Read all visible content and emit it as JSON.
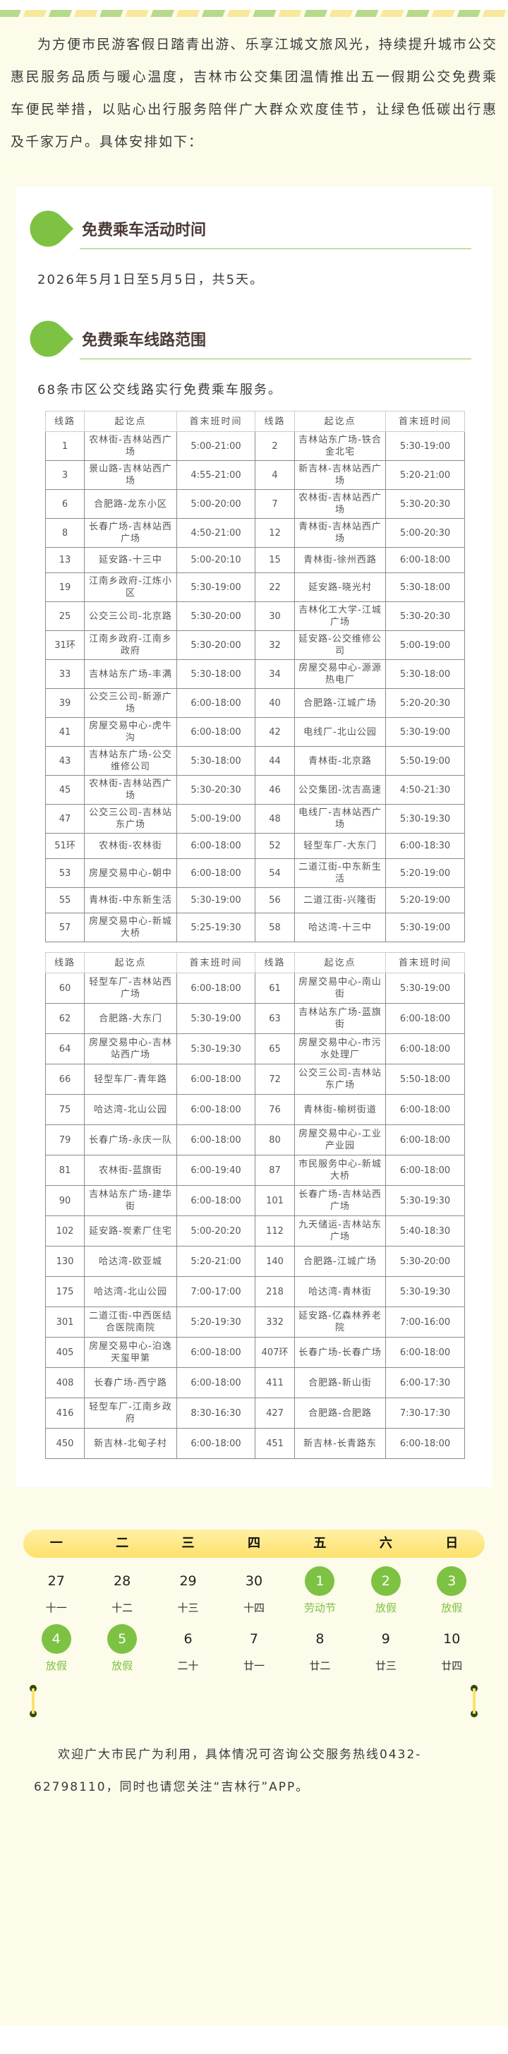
{
  "intro": "为方便市民游客假日踏青出游、乐享江城文旅风光，持续提升城市公交惠民服务品质与暖心温度，吉林市公交集团温情推出五一假期公交免费乘车便民举措，以贴心出行服务陪伴广大群众欢度佳节，让绿色低碳出行惠及千家万户。具体安排如下：",
  "section1": {
    "title": "免费乘车活动时间",
    "text": "2026年5月1日至5月5日，共5天。"
  },
  "section2": {
    "title": "免费乘车线路范围",
    "text": "68条市区公交线路实行免费乘车服务。"
  },
  "table_header": [
    "线路",
    "起讫点",
    "首末班时间",
    "线路",
    "起讫点",
    "首末班时间"
  ],
  "table1": [
    [
      "1",
      "农林街-吉林站西广场",
      "5:00-21:00",
      "2",
      "吉林站东广场-铁合金北宅",
      "5:30-19:00"
    ],
    [
      "3",
      "景山路-吉林站西广场",
      "4:55-21:00",
      "4",
      "新吉林-吉林站西广场",
      "5:20-21:00"
    ],
    [
      "6",
      "合肥路-龙东小区",
      "5:00-20:00",
      "7",
      "农林街-吉林站西广场",
      "5:30-20:30"
    ],
    [
      "8",
      "长春广场-吉林站西广场",
      "4:50-21:00",
      "12",
      "青林街-吉林站西广场",
      "5:00-20:30"
    ],
    [
      "13",
      "延安路-十三中",
      "5:00-20:10",
      "15",
      "青林街-徐州西路",
      "6:00-18:00"
    ],
    [
      "19",
      "江南乡政府-江炼小区",
      "5:30-19:00",
      "22",
      "延安路-晓光村",
      "5:30-18:00"
    ],
    [
      "25",
      "公交三公司-北京路",
      "5:30-20:00",
      "30",
      "吉林化工大学-江城广场",
      "5:30-20:30"
    ],
    [
      "31环",
      "江南乡政府-江南乡政府",
      "5:30-20:00",
      "32",
      "延安路-公交维修公司",
      "5:00-19:00"
    ],
    [
      "33",
      "吉林站东广场-丰满",
      "5:30-18:00",
      "34",
      "房屋交易中心-源源热电厂",
      "5:30-18:00"
    ],
    [
      "39",
      "公交三公司-新源广场",
      "6:00-18:00",
      "40",
      "合肥路-江城广场",
      "5:20-20:30"
    ],
    [
      "41",
      "房屋交易中心-虎牛沟",
      "6:00-18:00",
      "42",
      "电线厂-北山公园",
      "5:30-19:00"
    ],
    [
      "43",
      "吉林站东广场-公交维修公司",
      "5:30-18:00",
      "44",
      "青林街-北京路",
      "5:50-19:00"
    ],
    [
      "45",
      "农林街-吉林站西广场",
      "5:30-20:30",
      "46",
      "公交集团-沈吉高速",
      "4:50-21:30"
    ],
    [
      "47",
      "公交三公司-吉林站东广场",
      "5:00-19:00",
      "48",
      "电线厂-吉林站西广场",
      "5:30-19:30"
    ],
    [
      "51环",
      "农林街-农林街",
      "6:00-18:00",
      "52",
      "轻型车厂-大东门",
      "6:00-18:30"
    ],
    [
      "53",
      "房屋交易中心-朝中",
      "6:00-18:00",
      "54",
      "二道江街-中东新生活",
      "5:20-19:00"
    ],
    [
      "55",
      "青林街-中东新生活",
      "5:30-19:00",
      "56",
      "二道江街-兴隆街",
      "5:20-19:00"
    ],
    [
      "57",
      "房屋交易中心-新城大桥",
      "5:25-19:30",
      "58",
      "哈达湾-十三中",
      "5:30-19:00"
    ]
  ],
  "table2": [
    [
      "60",
      "轻型车厂-吉林站西广场",
      "6:00-18:00",
      "61",
      "房屋交易中心-南山街",
      "5:30-19:00"
    ],
    [
      "62",
      "合肥路-大东门",
      "5:30-19:00",
      "63",
      "吉林站东广场-蓝旗街",
      "6:00-18:00"
    ],
    [
      "64",
      "房屋交易中心-吉林站西广场",
      "5:30-19:30",
      "65",
      "房屋交易中心-市污水处理厂",
      "6:00-18:00"
    ],
    [
      "66",
      "轻型车厂-青年路",
      "6:00-18:00",
      "72",
      "公交三公司-吉林站东广场",
      "5:50-18:00"
    ],
    [
      "75",
      "哈达湾-北山公园",
      "6:00-18:00",
      "76",
      "青林街-榆树街道",
      "6:00-18:00"
    ],
    [
      "79",
      "长春广场-永庆一队",
      "6:00-18:00",
      "80",
      "房屋交易中心-工业产业园",
      "6:00-18:00"
    ],
    [
      "81",
      "农林街-蓝旗街",
      "6:00-19:40",
      "87",
      "市民服务中心-新城大桥",
      "6:00-18:00"
    ],
    [
      "90",
      "吉林站东广场-建华街",
      "6:00-18:00",
      "101",
      "长春广场-吉林站西广场",
      "5:30-19:30"
    ],
    [
      "102",
      "延安路-炭素厂住宅",
      "5:00-20:20",
      "112",
      "九天储运-吉林站东广场",
      "5:40-18:30"
    ],
    [
      "130",
      "哈达湾-欧亚城",
      "5:20-21:00",
      "140",
      "合肥路-江城广场",
      "5:30-20:00"
    ],
    [
      "175",
      "哈达湾-北山公园",
      "7:00-17:00",
      "218",
      "哈达湾-青林街",
      "5:30-19:30"
    ],
    [
      "301",
      "二道江街-中西医结合医院南院",
      "5:20-19:30",
      "332",
      "延安路-亿森林养老院",
      "7:00-16:00"
    ],
    [
      "405",
      "房屋交易中心-泊逸天玺甲第",
      "6:00-18:00",
      "407环",
      "长春广场-长春广场",
      "6:00-18:00"
    ],
    [
      "408",
      "长春广场-西宁路",
      "6:00-18:00",
      "411",
      "合肥路-新山街",
      "6:00-17:30"
    ],
    [
      "416",
      "轻型车厂-江南乡政府",
      "8:30-16:30",
      "427",
      "合肥路-合肥路",
      "7:30-17:30"
    ],
    [
      "450",
      "新吉林-北甸子村",
      "6:00-18:00",
      "451",
      "新吉林-长青路东",
      "6:00-18:00"
    ]
  ],
  "calendar": {
    "weekdays": [
      "一",
      "二",
      "三",
      "四",
      "五",
      "六",
      "日"
    ],
    "rows": [
      [
        {
          "d": "27",
          "l": "十一"
        },
        {
          "d": "28",
          "l": "十二"
        },
        {
          "d": "29",
          "l": "十三"
        },
        {
          "d": "30",
          "l": "十四"
        },
        {
          "d": "1",
          "l": "劳动节",
          "hl": true
        },
        {
          "d": "2",
          "l": "放假",
          "hl": true
        },
        {
          "d": "3",
          "l": "放假",
          "hl": true
        }
      ],
      [
        {
          "d": "4",
          "l": "放假",
          "hl": true
        },
        {
          "d": "5",
          "l": "放假",
          "hl": true
        },
        {
          "d": "6",
          "l": "二十"
        },
        {
          "d": "7",
          "l": "廿一"
        },
        {
          "d": "8",
          "l": "廿二"
        },
        {
          "d": "9",
          "l": "廿三"
        },
        {
          "d": "10",
          "l": "廿四"
        }
      ]
    ]
  },
  "footer": "欢迎广大市民广为利用，具体情况可咨询公交服务热线0432-62798110，同时也请您关注“吉林行”APP。",
  "colors": {
    "accent": "#7dc242",
    "background": "#fdfbea",
    "weekday_bar": "#fde06b",
    "title": "#4a3a35"
  }
}
